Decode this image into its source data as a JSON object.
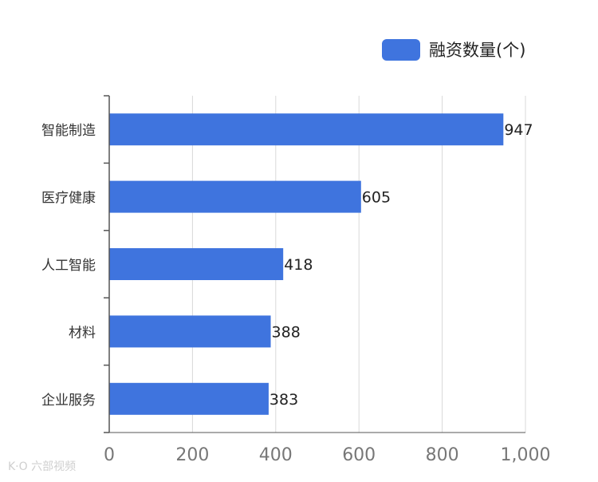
{
  "chart_data": {
    "type": "bar",
    "orientation": "horizontal",
    "categories": [
      "智能制造",
      "医疗健康",
      "人工智能",
      "材料",
      "企业服务"
    ],
    "series": [
      {
        "name": "融资数量(个)",
        "values": [
          947,
          605,
          418,
          388,
          383
        ],
        "color": "#3f74de"
      }
    ],
    "xlim": [
      0,
      1000
    ],
    "x_ticks": [
      0,
      200,
      400,
      600,
      800,
      1000
    ],
    "x_tick_labels": [
      "0",
      "200",
      "400",
      "600",
      "800",
      "1,000"
    ],
    "grid": true,
    "legend_position": "top-right",
    "data_labels": true
  },
  "colors": {
    "bar": "#3f74de",
    "grid": "#d9d9d9",
    "axis": "#555555",
    "tick_label": "#777777",
    "category_label": "#333333",
    "value_label": "#222222"
  },
  "watermark": "K·O 六部视频"
}
